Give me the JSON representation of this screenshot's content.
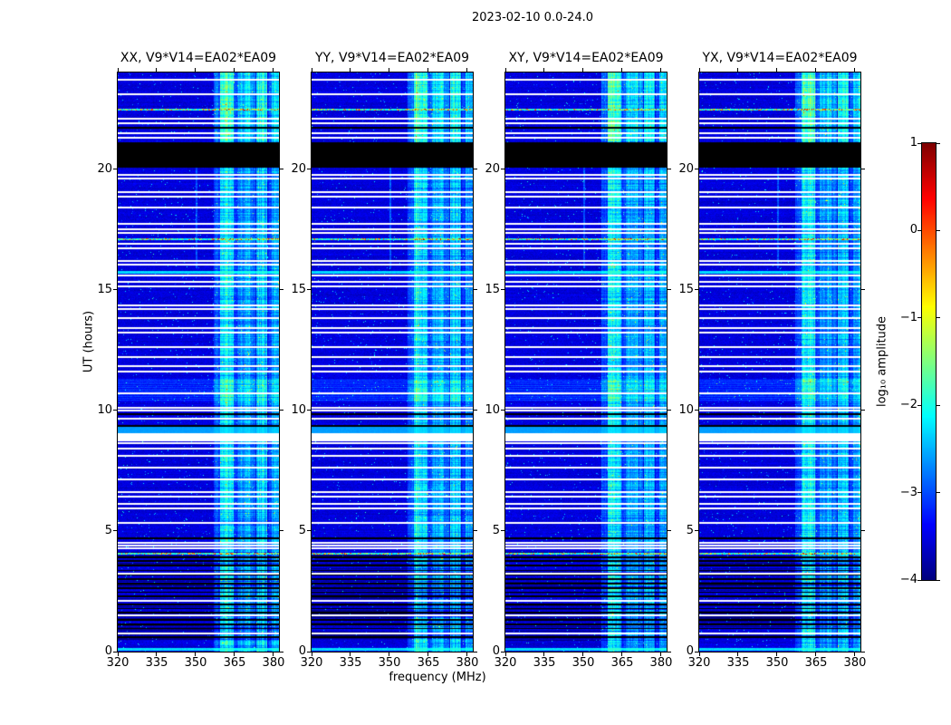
{
  "chart_data": {
    "type": "heatmap",
    "suptitle": "2023-02-10 0.0-24.0",
    "xlabel": "frequency (MHz)",
    "ylabel": "UT (hours)",
    "grid": false,
    "panels": [
      {
        "title": "XX, V9*V14=EA02*EA09"
      },
      {
        "title": "YY, V9*V14=EA02*EA09"
      },
      {
        "title": "XY, V9*V14=EA02*EA09"
      },
      {
        "title": "YX, V9*V14=EA02*EA09"
      }
    ],
    "x_ticks": [
      "320",
      "335",
      "350",
      "365",
      "380"
    ],
    "x_tick_values": [
      320,
      335,
      350,
      365,
      380
    ],
    "y_ticks": [
      "0",
      "5",
      "10",
      "15",
      "20"
    ],
    "y_tick_values": [
      0,
      5,
      10,
      15,
      20
    ],
    "x_range_mhz": [
      320,
      382.1
    ],
    "y_range_hours": [
      0,
      24
    ],
    "colormap": "jet",
    "colorbar": {
      "label": "log₁₀ amplitude",
      "tick_labels": [
        "1",
        "0",
        "−1",
        "−2",
        "−3",
        "−4"
      ],
      "tick_values": [
        1,
        0,
        -1,
        -2,
        -3,
        -4
      ],
      "range": [
        -4,
        1
      ]
    },
    "features": {
      "background_level": -3.55,
      "noise_sigma": 0.22,
      "flagged_black_band_hours": [
        20.05,
        21.1
      ],
      "white_band_hours": [
        8.72,
        9.05
      ],
      "lightblue_band_hours": [
        9.05,
        9.3
      ],
      "elevated_band_hours": [
        10.35,
        11.3
      ],
      "striped_zone_hours": [
        0.45,
        4.15
      ],
      "rfi_bands_mhz": [
        [
          357.0,
          359.5,
          0.5
        ],
        [
          359.5,
          364.5,
          1.25
        ],
        [
          364.5,
          366.5,
          0.45
        ],
        [
          366.5,
          369.5,
          0.85
        ],
        [
          369.5,
          371.0,
          1.0
        ],
        [
          371.0,
          373.0,
          0.65
        ],
        [
          373.5,
          377.5,
          1.05
        ],
        [
          378.0,
          379.3,
          0.4
        ],
        [
          379.3,
          382.2,
          0.9
        ]
      ],
      "narrow_line": {
        "mhz": [
          349.9,
          350.7
        ],
        "amp": 0.7,
        "hours": [
          15.9,
          20.05
        ]
      },
      "white_rows_hours": [
        23.7,
        23.1,
        22.1,
        21.9,
        21.5,
        21.3,
        19.76,
        19.6,
        19.05,
        18.85,
        18.4,
        17.72,
        17.52,
        17.35,
        16.9,
        16.72,
        16.2,
        16.02,
        15.58,
        15.32,
        15.12,
        14.35,
        14.18,
        13.82,
        13.42,
        13.22,
        12.62,
        12.22,
        11.82,
        11.62,
        10.72,
        10.12,
        9.98,
        9.65,
        8.62,
        8.42,
        8.12,
        7.62,
        7.12,
        6.62,
        6.42,
        6.12,
        5.92,
        5.32,
        4.52,
        4.4,
        4.28,
        3.22,
        2.12,
        1.52,
        0.76
      ],
      "black_rows_hours": [
        21.72,
        9.84,
        9.36,
        4.7,
        3.9,
        3.76,
        3.56,
        3.36,
        3.18,
        3.0,
        2.82,
        2.64,
        2.46,
        2.28,
        1.96,
        1.78,
        1.62,
        1.32,
        1.12,
        0.96,
        0.6
      ],
      "cyan_rows_hours": [
        15.72,
        0.1
      ],
      "speckle_rows_hours": [
        22.45,
        17.1,
        4.05
      ]
    }
  }
}
